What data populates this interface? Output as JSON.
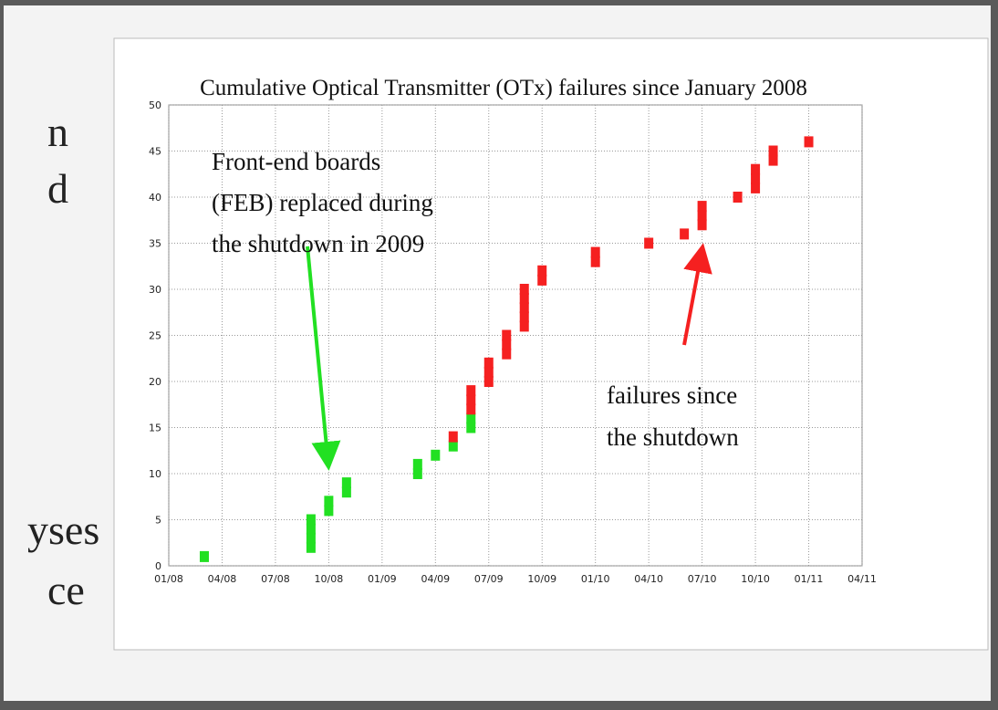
{
  "slide_text": [
    "n",
    "d",
    "yses",
    "ce"
  ],
  "chart_data": {
    "type": "scatter",
    "title": "Cumulative Optical Transmitter (OTx) failures since January 2008",
    "xlim": [
      "01/08",
      "04/11"
    ],
    "xticks": [
      "01/08",
      "04/08",
      "07/08",
      "10/08",
      "01/09",
      "04/09",
      "07/09",
      "10/09",
      "01/10",
      "04/10",
      "07/10",
      "10/10",
      "01/11",
      "04/11"
    ],
    "ylim": [
      0,
      50
    ],
    "yticks": [
      0,
      5,
      10,
      15,
      20,
      25,
      30,
      35,
      40,
      45,
      50
    ],
    "grid": true,
    "series": [
      {
        "color": "#22e022",
        "x": [
          "03/08",
          "09/08",
          "09/08",
          "09/08",
          "09/08",
          "10/08",
          "10/08",
          "11/08",
          "11/08",
          "03/09",
          "03/09",
          "04/09",
          "05/09",
          "06/09",
          "06/09"
        ],
        "values": [
          1,
          2,
          3,
          4,
          5,
          6,
          7,
          8,
          9,
          10,
          11,
          12,
          13,
          15,
          16
        ]
      },
      {
        "color": "#f52020",
        "x": [
          "05/09",
          "06/09",
          "06/09",
          "06/09",
          "07/09",
          "07/09",
          "07/09",
          "08/09",
          "08/09",
          "08/09",
          "09/09",
          "09/09",
          "09/09",
          "09/09",
          "09/09",
          "10/09",
          "10/09",
          "01/10",
          "01/10",
          "04/10",
          "06/10",
          "07/10",
          "07/10",
          "07/10",
          "09/10",
          "10/10",
          "10/10",
          "10/10",
          "11/10",
          "11/10",
          "01/11"
        ],
        "values": [
          14,
          17,
          18,
          19,
          20,
          21,
          22,
          23,
          24,
          25,
          26,
          27,
          28,
          29,
          30,
          31,
          32,
          33,
          34,
          35,
          36,
          37,
          38,
          39,
          40,
          41,
          42,
          43,
          44,
          45,
          46
        ]
      }
    ],
    "annotations": [
      {
        "text": [
          "Front-end boards",
          "(FEB) replaced during",
          "the shutdown in 2009"
        ]
      },
      {
        "text": [
          "failures since",
          "the shutdown"
        ]
      }
    ]
  }
}
